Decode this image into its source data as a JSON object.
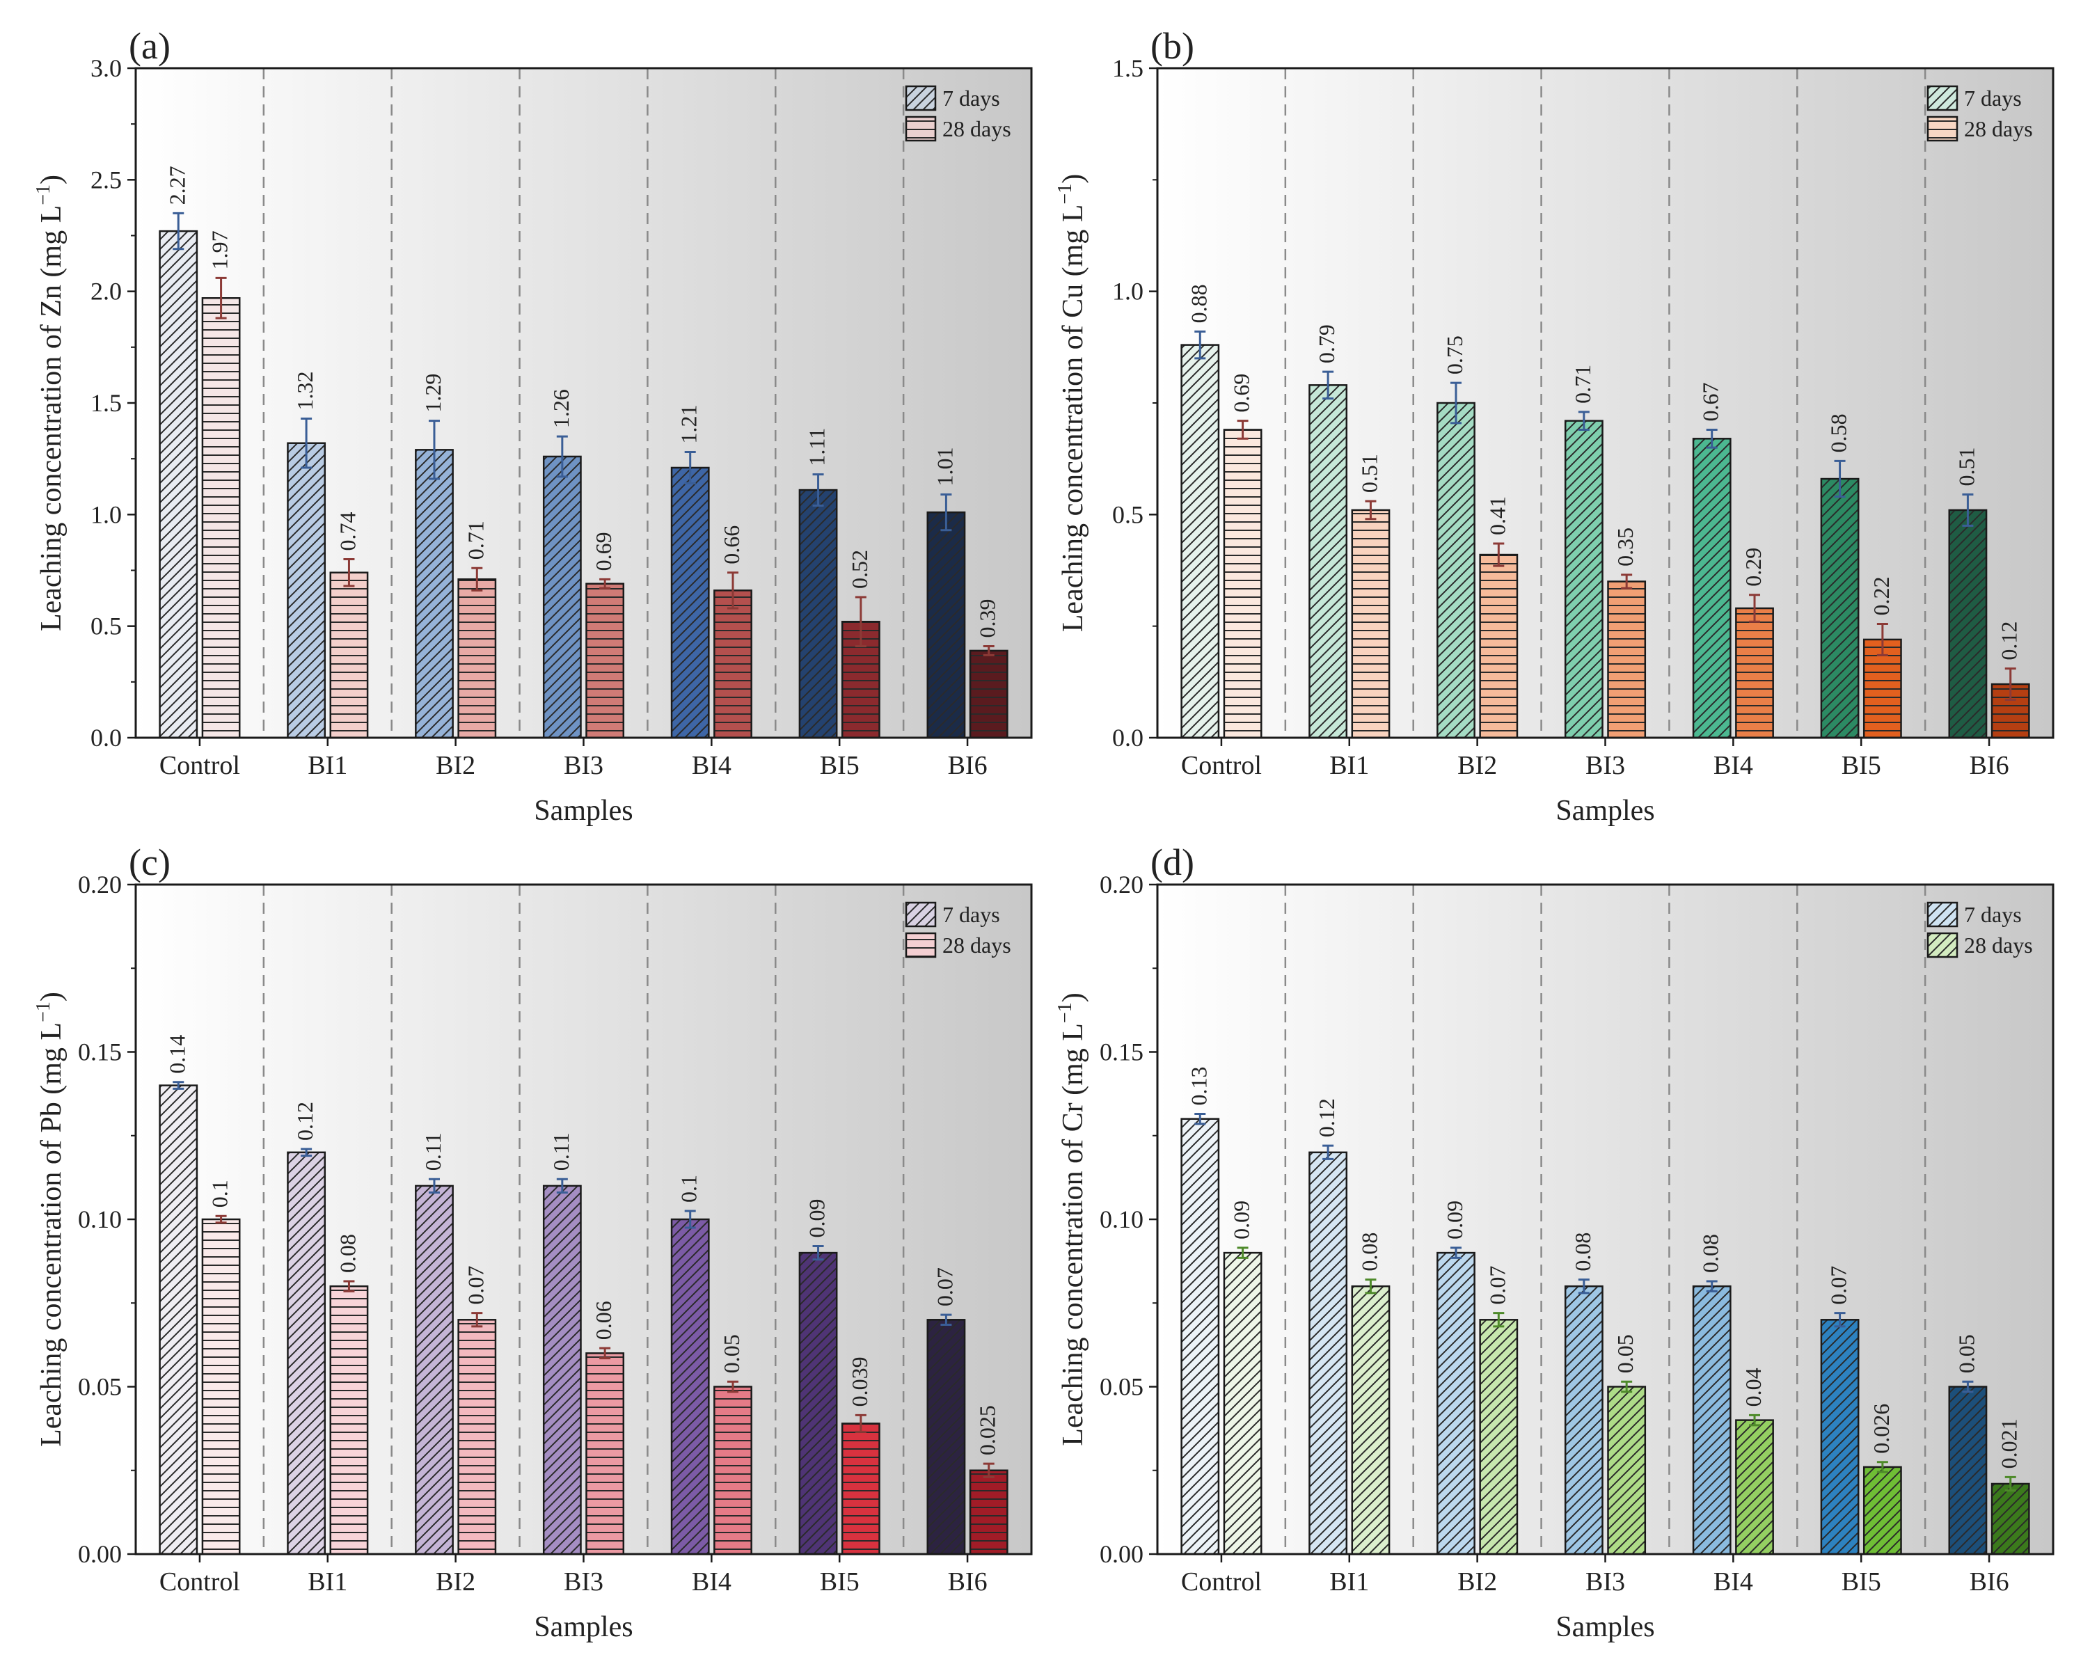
{
  "chart_data": [
    {
      "panel_label": "(a)",
      "type": "bar",
      "title": "",
      "xlabel": "Samples",
      "ylabel_main": "Leaching concentration of Zn (mg L",
      "ylabel_sup": "−1",
      "ylabel_close": ")",
      "ylim": [
        0,
        3.0
      ],
      "yticks": [
        "0.0",
        "0.5",
        "1.0",
        "1.5",
        "2.0",
        "2.5",
        "3.0"
      ],
      "categories": [
        "Control",
        "BI1",
        "BI2",
        "BI3",
        "BI4",
        "BI5",
        "BI6"
      ],
      "legend_position": "top-right",
      "series": [
        {
          "name": "7 days",
          "values": [
            2.27,
            1.32,
            1.29,
            1.26,
            1.21,
            1.11,
            1.01
          ],
          "labels": [
            "2.27",
            "1.32",
            "1.29",
            "1.26",
            "1.21",
            "1.11",
            "1.01"
          ],
          "errors": [
            0.08,
            0.11,
            0.13,
            0.09,
            0.07,
            0.07,
            0.08
          ],
          "pattern": "diagonal",
          "colors": [
            "#e9ecf2",
            "#b9cce4",
            "#96b3d8",
            "#6f93c4",
            "#3e66a6",
            "#24426f",
            "#1b2b48"
          ],
          "error_color": "#3a5e96",
          "legend_color": "#c9d3df"
        },
        {
          "name": "28 days",
          "values": [
            1.97,
            0.74,
            0.71,
            0.69,
            0.66,
            0.52,
            0.39
          ],
          "labels": [
            "1.97",
            "0.74",
            "0.71",
            "0.69",
            "0.66",
            "0.52",
            "0.39"
          ],
          "errors": [
            0.09,
            0.06,
            0.05,
            0.02,
            0.08,
            0.11,
            0.02
          ],
          "pattern": "horizontal",
          "colors": [
            "#f5e6e6",
            "#f3cfcb",
            "#e8aaa6",
            "#d07b76",
            "#b4504e",
            "#8b2a2e",
            "#5a1b1f"
          ],
          "error_color": "#8c3a36",
          "legend_color": "#ead0cf"
        }
      ]
    },
    {
      "panel_label": "(b)",
      "type": "bar",
      "title": "",
      "xlabel": "Samples",
      "ylabel_main": "Leaching concentration of Cu (mg L",
      "ylabel_sup": "−1",
      "ylabel_close": ")",
      "ylim": [
        0,
        1.5
      ],
      "yticks": [
        "0.0",
        "0.5",
        "1.0",
        "1.5"
      ],
      "categories": [
        "Control",
        "BI1",
        "BI2",
        "BI3",
        "BI4",
        "BI5",
        "BI6"
      ],
      "legend_position": "top-right",
      "series": [
        {
          "name": "7 days",
          "values": [
            0.88,
            0.79,
            0.75,
            0.71,
            0.67,
            0.58,
            0.51
          ],
          "labels": [
            "0.88",
            "0.79",
            "0.75",
            "0.71",
            "0.67",
            "0.58",
            "0.51"
          ],
          "errors": [
            0.03,
            0.03,
            0.045,
            0.02,
            0.02,
            0.04,
            0.035
          ],
          "pattern": "diagonal",
          "colors": [
            "#e6f2ec",
            "#c6e8d8",
            "#a5dcc4",
            "#7fcfae",
            "#4cb891",
            "#2c8a63",
            "#1f5c44"
          ],
          "error_color": "#3a5e96",
          "legend_color": "#cfe9dd"
        },
        {
          "name": "28 days",
          "values": [
            0.69,
            0.51,
            0.41,
            0.35,
            0.29,
            0.22,
            0.12
          ],
          "labels": [
            "0.69",
            "0.51",
            "0.41",
            "0.35",
            "0.29",
            "0.22",
            "0.12"
          ],
          "errors": [
            0.02,
            0.02,
            0.025,
            0.015,
            0.03,
            0.035,
            0.035
          ],
          "pattern": "horizontal",
          "colors": [
            "#fbe8de",
            "#f9d3bf",
            "#f6bb9b",
            "#f19f74",
            "#ea7f48",
            "#e2601f",
            "#b53f12"
          ],
          "error_color": "#8c3a36",
          "legend_color": "#f8d7c4"
        }
      ]
    },
    {
      "panel_label": "(c)",
      "type": "bar",
      "title": "",
      "xlabel": "Samples",
      "ylabel_main": "Leaching concentration of Pb (mg L",
      "ylabel_sup": "−1",
      "ylabel_close": ")",
      "ylim": [
        0,
        0.2
      ],
      "yticks": [
        "0.00",
        "0.05",
        "0.10",
        "0.15",
        "0.20"
      ],
      "categories": [
        "Control",
        "BI1",
        "BI2",
        "BI3",
        "BI4",
        "BI5",
        "BI6"
      ],
      "legend_position": "top-right",
      "series": [
        {
          "name": "7 days",
          "values": [
            0.14,
            0.12,
            0.11,
            0.11,
            0.1,
            0.09,
            0.07
          ],
          "labels": [
            "0.14",
            "0.12",
            "0.11",
            "0.11",
            "0.1",
            "0.09",
            "0.07"
          ],
          "errors": [
            0.001,
            0.001,
            0.002,
            0.002,
            0.0025,
            0.002,
            0.0015
          ],
          "pattern": "diagonal",
          "colors": [
            "#f0eef3",
            "#dcd2e5",
            "#c5b5d6",
            "#a58ec3",
            "#7c5ba6",
            "#4f3475",
            "#2c2341"
          ],
          "error_color": "#3a5e96",
          "legend_color": "#d9d2e3"
        },
        {
          "name": "28 days",
          "values": [
            0.1,
            0.08,
            0.07,
            0.06,
            0.05,
            0.039,
            0.025
          ],
          "labels": [
            "0.1",
            "0.08",
            "0.07",
            "0.06",
            "0.05",
            "0.039",
            "0.025"
          ],
          "errors": [
            0.001,
            0.0015,
            0.002,
            0.0015,
            0.0015,
            0.0025,
            0.002
          ],
          "pattern": "horizontal",
          "colors": [
            "#faeaea",
            "#f8d4d8",
            "#f3b9bf",
            "#ec9aa3",
            "#e57b87",
            "#d8323f",
            "#a11c27"
          ],
          "error_color": "#8c3a36",
          "legend_color": "#f4cfd2"
        }
      ]
    },
    {
      "panel_label": "(d)",
      "type": "bar",
      "title": "",
      "xlabel": "Samples",
      "ylabel_main": "Leaching concentration of Cr (mg L",
      "ylabel_sup": "−1",
      "ylabel_close": ")",
      "ylim": [
        0,
        0.2
      ],
      "yticks": [
        "0.00",
        "0.05",
        "0.10",
        "0.15",
        "0.20"
      ],
      "categories": [
        "Control",
        "BI1",
        "BI2",
        "BI3",
        "BI4",
        "BI5",
        "BI6"
      ],
      "legend_position": "top-right",
      "series": [
        {
          "name": "7 days",
          "values": [
            0.13,
            0.12,
            0.09,
            0.08,
            0.08,
            0.07,
            0.05
          ],
          "labels": [
            "0.13",
            "0.12",
            "0.09",
            "0.08",
            "0.08",
            "0.07",
            "0.05"
          ],
          "errors": [
            0.0015,
            0.002,
            0.0015,
            0.002,
            0.0015,
            0.002,
            0.0015
          ],
          "pattern": "diagonal",
          "colors": [
            "#edf3f8",
            "#d6e6f3",
            "#bcd8ee",
            "#9fc7e5",
            "#8bbbdf",
            "#2d82c0",
            "#1c4f7a"
          ],
          "error_color": "#3a5e96",
          "legend_color": "#cfe3f2"
        },
        {
          "name": "28 days",
          "values": [
            0.09,
            0.08,
            0.07,
            0.05,
            0.04,
            0.026,
            0.021
          ],
          "labels": [
            "0.09",
            "0.08",
            "0.07",
            "0.05",
            "0.04",
            "0.026",
            "0.021"
          ],
          "errors": [
            0.0015,
            0.002,
            0.002,
            0.0015,
            0.0015,
            0.0015,
            0.002
          ],
          "pattern": "diagonal",
          "colors": [
            "#eef6e8",
            "#dcefcd",
            "#c7e7ae",
            "#aedc88",
            "#94cf62",
            "#6fbe35",
            "#3b7a1c"
          ],
          "error_color": "#4e8a2a",
          "legend_color": "#d3ebc0"
        }
      ]
    }
  ]
}
